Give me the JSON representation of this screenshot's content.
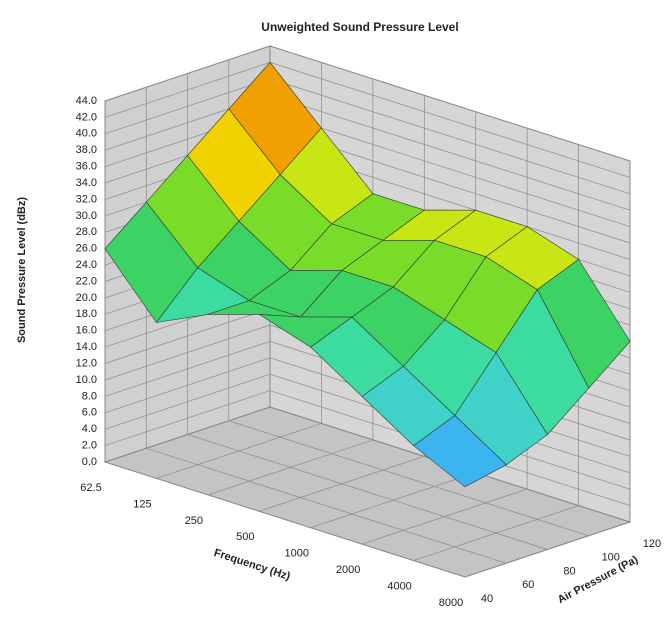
{
  "chart_data": {
    "type": "surface",
    "title": "Unweighted Sound Pressure Level",
    "x_label": "Frequency (Hz)",
    "y_label": "Air Pressure (Pa)",
    "z_label": "Sound Pressure Level (dBz)",
    "categories": [
      "62.5",
      "125",
      "250",
      "500",
      "1000",
      "2000",
      "4000",
      "8000"
    ],
    "y": [
      40,
      60,
      80,
      100,
      120
    ],
    "ylim": [
      40,
      120
    ],
    "yticks": [
      40,
      60,
      80,
      100,
      120
    ],
    "values": [
      [
        26,
        30,
        34,
        38,
        42
      ],
      [
        19,
        24,
        28,
        32,
        36
      ],
      [
        22,
        22,
        24,
        28,
        30
      ],
      [
        24,
        22,
        26,
        28,
        30
      ],
      [
        22,
        24,
        26,
        30,
        32
      ],
      [
        18,
        20,
        24,
        30,
        32
      ],
      [
        14,
        16,
        22,
        28,
        30
      ],
      [
        11,
        12,
        14,
        18,
        22
      ]
    ],
    "zlim": [
      0,
      44
    ],
    "zticks": [
      {
        "value": 0,
        "label": "0.0"
      },
      {
        "value": 2,
        "label": "2.0"
      },
      {
        "value": 4,
        "label": "4.0"
      },
      {
        "value": 6,
        "label": "6.0"
      },
      {
        "value": 8,
        "label": "8.0"
      },
      {
        "value": 10,
        "label": "10.0"
      },
      {
        "value": 12,
        "label": "12.0"
      },
      {
        "value": 14,
        "label": "14.0"
      },
      {
        "value": 16,
        "label": "16.0"
      },
      {
        "value": 18,
        "label": "18.0"
      },
      {
        "value": 20,
        "label": "20.0"
      },
      {
        "value": 22,
        "label": "22.0"
      },
      {
        "value": 24,
        "label": "24.0"
      },
      {
        "value": 26,
        "label": "26.0"
      },
      {
        "value": 28,
        "label": "28.0"
      },
      {
        "value": 30,
        "label": "30.0"
      },
      {
        "value": 32,
        "label": "32.0"
      },
      {
        "value": 34,
        "label": "34.0"
      },
      {
        "value": 36,
        "label": "36.0"
      },
      {
        "value": 38,
        "label": "38.0"
      },
      {
        "value": 40,
        "label": "40.0"
      },
      {
        "value": 42,
        "label": "42.0"
      },
      {
        "value": 44,
        "label": "44.0"
      }
    ],
    "grid": true,
    "colorscale": [
      "#0a14c8",
      "#1e4ee6",
      "#2a86f0",
      "#3cb4f0",
      "#40d2c8",
      "#3cdca0",
      "#3cd264",
      "#78dc28",
      "#c8e614",
      "#f0d200",
      "#f0a000",
      "#e67800"
    ]
  }
}
